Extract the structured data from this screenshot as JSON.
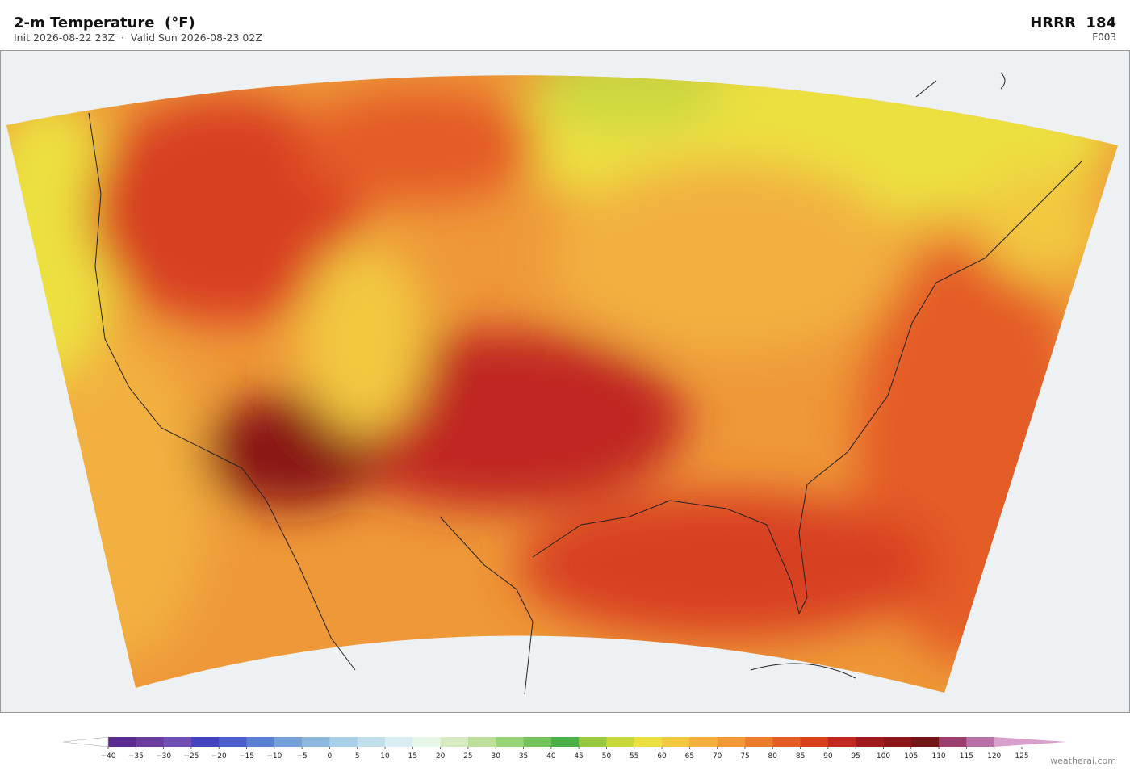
{
  "header": {
    "title": "2-m Temperature  (°F)",
    "subtitle": "Init 2026-08-22 23Z  ·  Valid Sun 2026-08-23 02Z",
    "model": "HRRR  184",
    "forecast_hour": "F003"
  },
  "colorbar": {
    "ticks": [
      {
        "value": -40,
        "label": "−40"
      },
      {
        "value": -35,
        "label": "−35"
      },
      {
        "value": -30,
        "label": "−30"
      },
      {
        "value": -25,
        "label": "−25"
      },
      {
        "value": -20,
        "label": "−20"
      },
      {
        "value": -15,
        "label": "−15"
      },
      {
        "value": -10,
        "label": "−10"
      },
      {
        "value": -5,
        "label": "−5"
      },
      0,
      5,
      10,
      15,
      20,
      25,
      30,
      35,
      40,
      45,
      50,
      55,
      60,
      65,
      70,
      75,
      80,
      85,
      90,
      95,
      100,
      105,
      110,
      115,
      120,
      125
    ],
    "colors": [
      "#5b2d8e",
      "#6a3d9a",
      "#6f4fb0",
      "#4444c0",
      "#4a60c8",
      "#5a80d0",
      "#74a0d8",
      "#8cb8e0",
      "#a8d0e8",
      "#c0e0ee",
      "#d8eef2",
      "#e8f6e8",
      "#d6ecc0",
      "#bce09a",
      "#98d478",
      "#74c25c",
      "#4caf4a",
      "#98c842",
      "#cad840",
      "#ece040",
      "#f2c840",
      "#f2b040",
      "#ee9838",
      "#ea7c30",
      "#e45c28",
      "#d84020",
      "#c02820",
      "#a01c1c",
      "#8a1818",
      "#701818",
      "#9a4070",
      "#b870a8"
    ],
    "under_color": "#ffffff",
    "over_color": "#d8a0cc"
  },
  "watermark": "weatherai.com"
}
